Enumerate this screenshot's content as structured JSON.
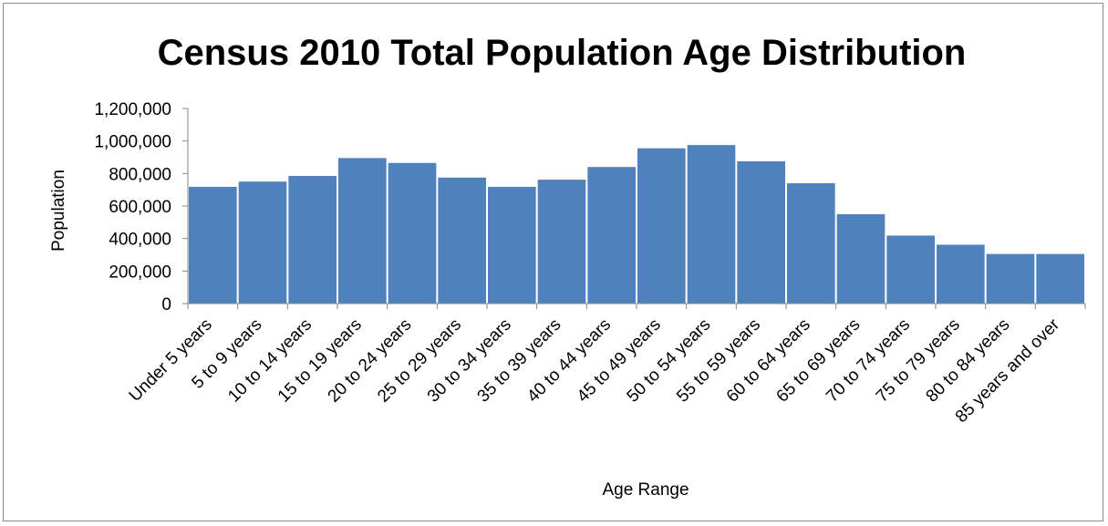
{
  "chart_data": {
    "type": "bar",
    "title": "Census 2010 Total Population Age Distribution",
    "xlabel": "Age Range",
    "ylabel": "Population",
    "ylim": [
      0,
      1200000
    ],
    "yticks": [
      "0",
      "200,000",
      "400,000",
      "600,000",
      "800,000",
      "1,000,000",
      "1,200,000"
    ],
    "categories": [
      "Under 5 years",
      "5 to 9 years",
      "10 to 14 years",
      "15 to 19 years",
      "20 to 24 years",
      "25 to 29 years",
      "30 to 34 years",
      "35 to 39 years",
      "40 to 44 years",
      "45 to 49 years",
      "50 to 54 years",
      "55 to 59 years",
      "60 to 64 years",
      "65 to 69 years",
      "70 to 74 years",
      "75 to 79 years",
      "80 to 84 years",
      "85 years and over"
    ],
    "values": [
      718000,
      750000,
      785000,
      895000,
      865000,
      775000,
      718000,
      762000,
      840000,
      955000,
      975000,
      875000,
      740000,
      550000,
      418000,
      362000,
      305000,
      305000
    ],
    "bar_color": "#4f81bd",
    "grid": false,
    "legend": "none"
  }
}
